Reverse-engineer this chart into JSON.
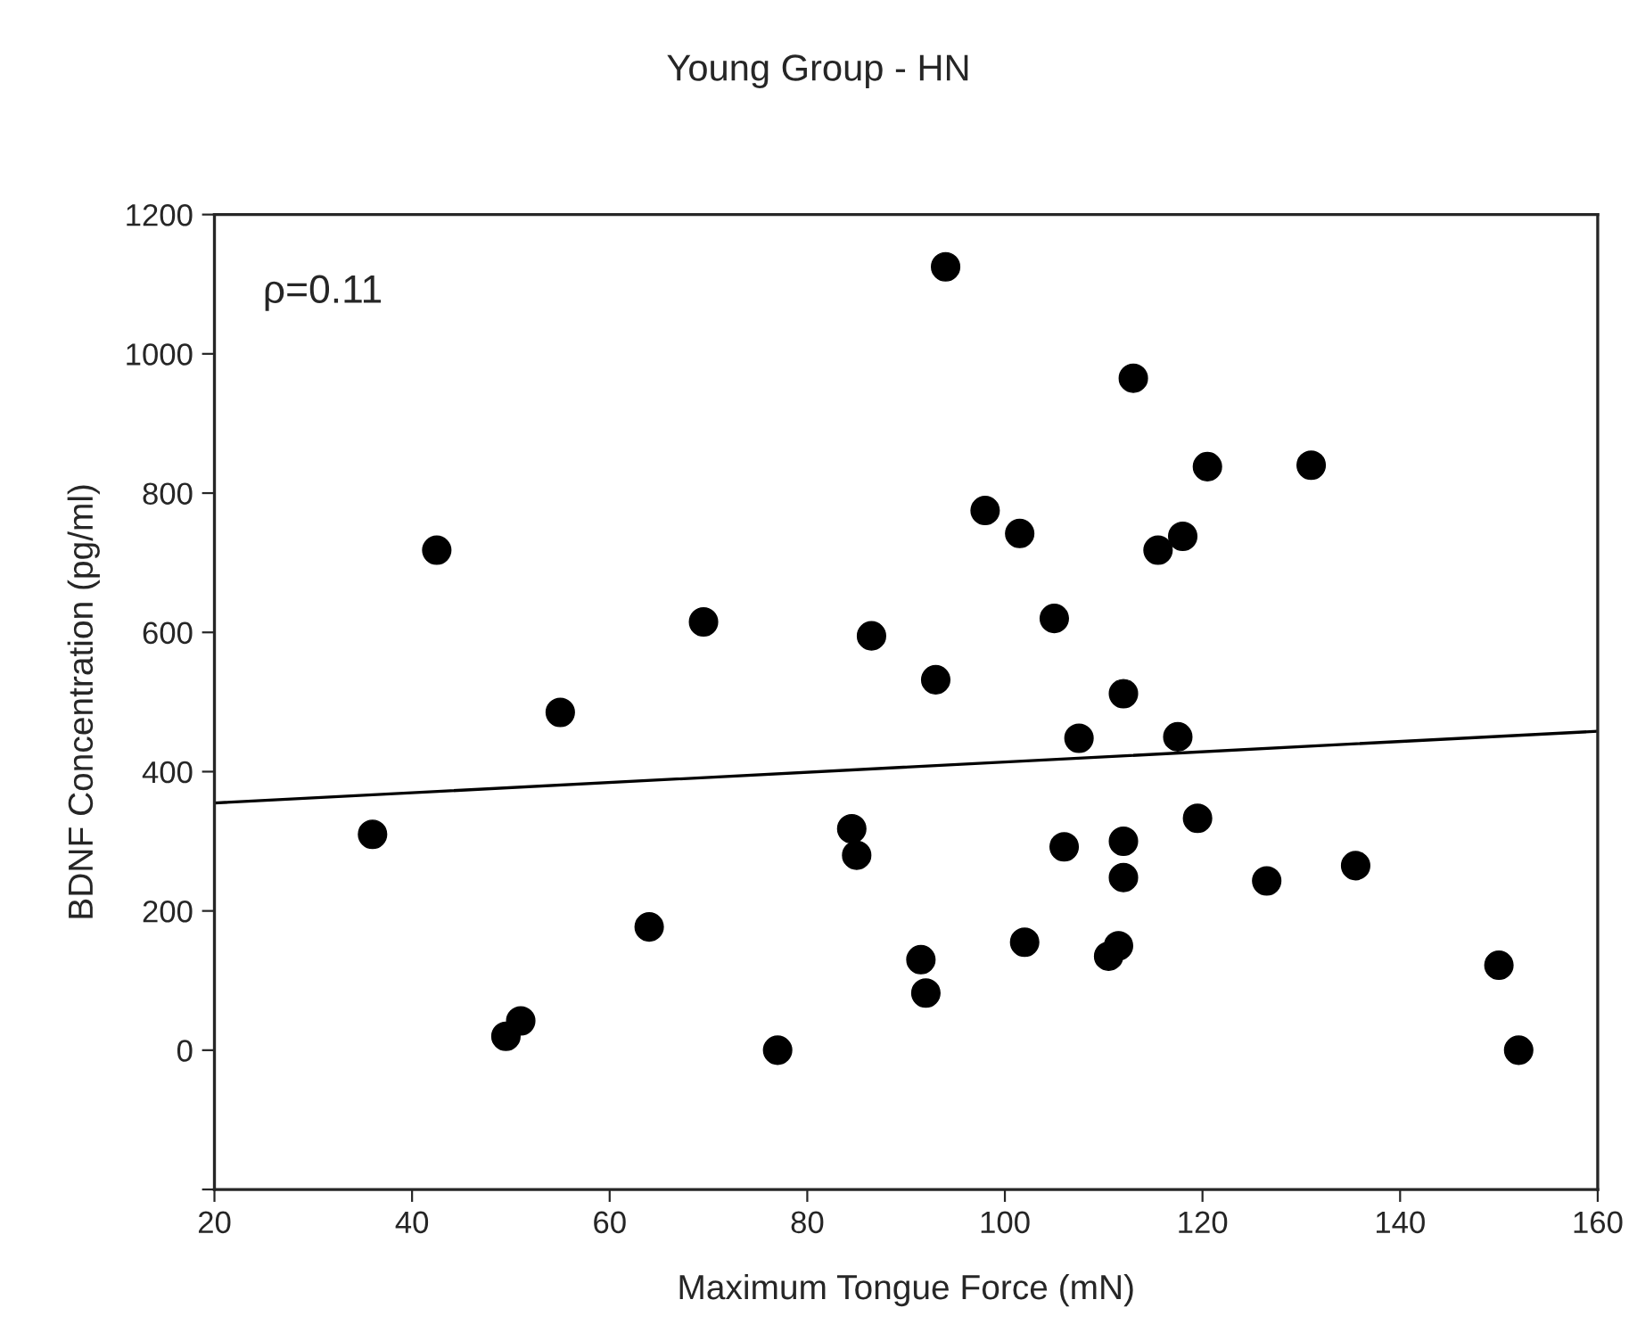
{
  "chart_data": {
    "type": "scatter",
    "title": "Young Group - HN",
    "xlabel": "Maximum Tongue Force (mN)",
    "ylabel": "BDNF Concentration (pg/ml)",
    "xlim": [
      20,
      160
    ],
    "xticks": [
      20,
      40,
      60,
      80,
      100,
      120,
      140,
      160
    ],
    "ylim": [
      -200,
      1200
    ],
    "yticks": [
      {
        "value": -200,
        "label": null
      },
      0,
      200,
      400,
      600,
      800,
      1000,
      1200
    ],
    "grid": false,
    "legend": false,
    "annotations": [
      "ρ=0.11"
    ],
    "series": [
      {
        "color": "#000000",
        "marker": "circle",
        "x": [
          36,
          42.5,
          49.5,
          51,
          55,
          64,
          69.5,
          77,
          84.5,
          85,
          86.5,
          91.5,
          92,
          93,
          94,
          98,
          101.5,
          102,
          105,
          106,
          107.5,
          110.5,
          111.5,
          112,
          112,
          112,
          113,
          115.5,
          117.5,
          118,
          119.5,
          120.5,
          126.5,
          131,
          135.5,
          150,
          152
        ],
        "values": [
          310,
          718,
          20,
          42,
          485,
          177,
          615,
          0,
          318,
          280,
          595,
          130,
          82,
          532,
          1125,
          775,
          742,
          155,
          620,
          292,
          448,
          135,
          150,
          300,
          248,
          512,
          965,
          718,
          450,
          738,
          333,
          838,
          243,
          840,
          265,
          122,
          0
        ]
      },
      {
        "type": "line",
        "marker": "none",
        "color": "#000000",
        "x": [
          20,
          160
        ],
        "values": [
          355,
          458
        ]
      }
    ]
  }
}
